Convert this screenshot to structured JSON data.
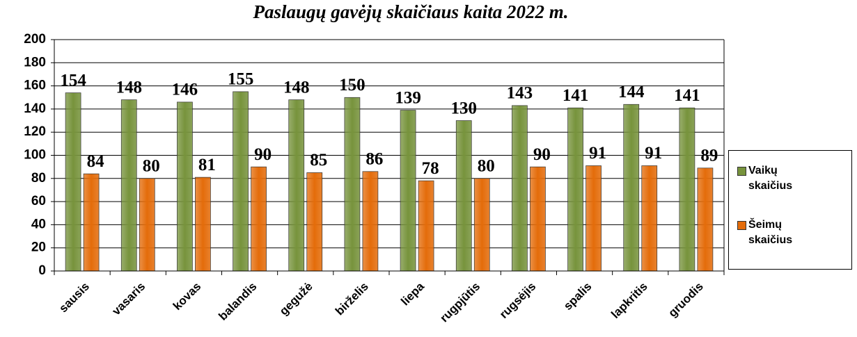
{
  "chart_data": {
    "type": "bar",
    "title": "Paslaugų gavėjų skaičiaus kaita 2022 m.",
    "categories": [
      "sausis",
      "vasaris",
      "kovas",
      "balandis",
      "gegužė",
      "birželis",
      "liepa",
      "rugpjūtis",
      "rugsėjis",
      "spalis",
      "lapkritis",
      "gruodis"
    ],
    "series": [
      {
        "name": "Vaikų skaičius",
        "color": "#77933c",
        "values": [
          154,
          148,
          146,
          155,
          148,
          150,
          139,
          130,
          143,
          141,
          144,
          141
        ]
      },
      {
        "name": "Šeimų skaičius",
        "color": "#e46c0a",
        "values": [
          84,
          80,
          81,
          90,
          85,
          86,
          78,
          80,
          90,
          91,
          91,
          89
        ]
      }
    ],
    "ylim": [
      0,
      200
    ],
    "yticks": [
      0,
      20,
      40,
      60,
      80,
      100,
      120,
      140,
      160,
      180,
      200
    ],
    "grid": true,
    "legend": "right"
  }
}
